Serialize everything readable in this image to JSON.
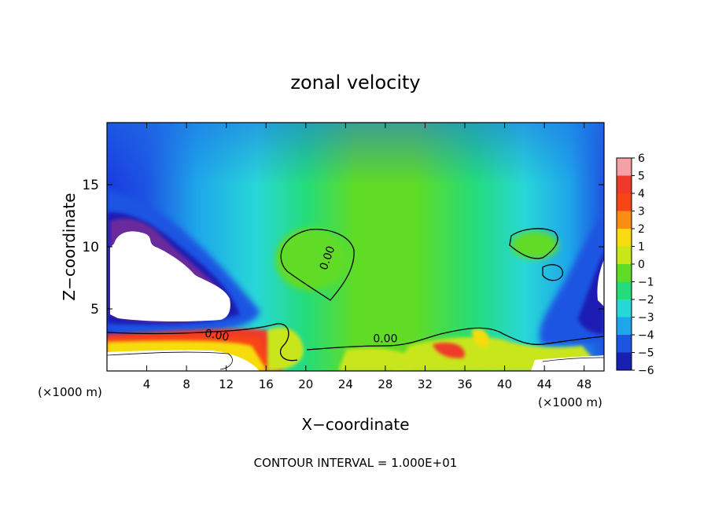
{
  "chart_data": {
    "type": "heatmap",
    "title": "zonal velocity",
    "xlabel": "X−coordinate",
    "ylabel": "Z−coordinate",
    "x_unit_left": "(×1000 m)",
    "x_unit_right": "(×1000 m)",
    "footer": "CONTOUR INTERVAL = 1.000E+01",
    "xlim": [
      0,
      50
    ],
    "ylim": [
      0,
      20
    ],
    "x_ticks": [
      4,
      8,
      12,
      16,
      20,
      24,
      28,
      32,
      36,
      40,
      44,
      48
    ],
    "y_ticks": [
      5,
      10,
      15
    ],
    "contour_labels": [
      {
        "text": "0.00",
        "x": 22.5,
        "y": 9.0,
        "rotate": -70
      },
      {
        "text": "0.00",
        "x": 11.0,
        "y": 2.6,
        "rotate": 10
      },
      {
        "text": "0.00",
        "x": 28.0,
        "y": 2.3,
        "rotate": 0
      }
    ],
    "colorbar": {
      "levels": [
        6,
        5,
        4,
        3,
        2,
        1,
        0,
        -1,
        -2,
        -3,
        -4,
        -5,
        -6
      ],
      "labels": [
        "6",
        "5",
        "4",
        "3",
        "2",
        "1",
        "0",
        "−1",
        "−2",
        "−3",
        "−4",
        "−5",
        "−6"
      ],
      "colors": [
        "#f4a0a6",
        "#ee3a2a",
        "#f84515",
        "#fb8d14",
        "#f7dc10",
        "#c9e61b",
        "#60dc25",
        "#24dc7a",
        "#28d7d8",
        "#1ea6ea",
        "#1d54e2",
        "#1a1fb4",
        "#6b2b9b"
      ]
    }
  }
}
